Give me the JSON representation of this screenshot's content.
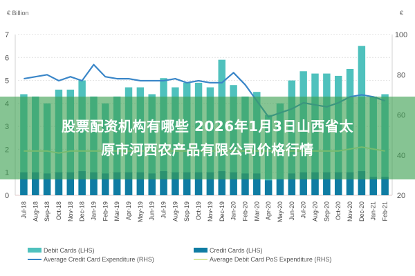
{
  "chart_data": {
    "type": "bar",
    "title": "",
    "left_unit": "€ Billion",
    "right_unit": "€",
    "ylabel_left": "€ Billion",
    "ylabel_right": "€",
    "ylim_left": [
      0,
      7
    ],
    "ylim_right": [
      20,
      100
    ],
    "yticks_left": [
      0,
      1,
      2,
      3,
      4,
      5,
      6,
      7
    ],
    "yticks_right": [
      20,
      40,
      60,
      80,
      100
    ],
    "grid": true,
    "legend_position": "bottom",
    "categories": [
      "Jul-18",
      "Aug-18",
      "Sep-18",
      "Oct-18",
      "Nov-18",
      "Dec-18",
      "Jan-19",
      "Feb-19",
      "Mar-19",
      "Apr-19",
      "May-19",
      "Jun-19",
      "Jul-19",
      "Aug-19",
      "Sep-19",
      "Oct-19",
      "Nov-19",
      "Dec-19",
      "Jan-20",
      "Feb-20",
      "Mar-20",
      "Apr-20",
      "May-20",
      "Jun-20",
      "Jul-20",
      "Aug-20",
      "Sep-20",
      "Oct-20",
      "Nov-20",
      "Dec-20",
      "Jan-21",
      "Feb-21"
    ],
    "series": [
      {
        "name": "Debit Cards (LHS)",
        "axis": "left",
        "kind": "bar",
        "color": "#4fc1bd",
        "values": [
          4.4,
          4.3,
          4.0,
          4.6,
          4.6,
          5.0,
          4.3,
          4.0,
          4.3,
          4.7,
          4.7,
          4.4,
          5.1,
          4.7,
          4.9,
          4.9,
          4.7,
          5.9,
          4.8,
          4.3,
          4.5,
          3.5,
          4.0,
          5.0,
          5.4,
          5.3,
          5.3,
          5.2,
          5.5,
          6.5,
          4.3,
          4.4
        ]
      },
      {
        "name": "Credit Cards (LHS)",
        "axis": "left",
        "kind": "bar",
        "color": "#0f7ca3",
        "values": [
          1.0,
          1.0,
          0.95,
          1.0,
          1.0,
          1.05,
          1.0,
          0.95,
          1.0,
          1.0,
          1.0,
          0.95,
          1.05,
          1.0,
          1.0,
          1.0,
          1.0,
          1.05,
          1.0,
          0.95,
          0.95,
          0.65,
          0.7,
          0.95,
          1.0,
          1.0,
          1.0,
          1.0,
          1.0,
          1.05,
          0.8,
          0.8
        ]
      },
      {
        "name": "Average Credit Card Expenditure (RHS)",
        "axis": "right",
        "kind": "line",
        "color": "#3a86c8",
        "values": [
          78,
          79,
          80,
          77,
          79,
          77,
          85,
          79,
          78,
          78,
          77,
          77,
          77,
          78,
          76,
          77,
          76,
          76,
          81,
          75,
          67,
          59,
          61,
          63,
          66,
          65,
          64,
          66,
          69,
          70,
          69,
          67
        ]
      },
      {
        "name": "Average Debit Card PoS Expenditure (RHS)",
        "axis": "right",
        "kind": "line",
        "color": "#d8e8a0",
        "values": [
          42,
          42,
          42,
          41,
          42,
          42,
          42,
          42,
          42,
          42,
          42,
          42,
          42,
          42,
          42,
          42,
          42,
          42,
          42,
          42,
          42,
          42,
          42,
          42,
          42,
          42,
          42,
          42,
          43,
          44,
          43,
          42
        ]
      }
    ]
  },
  "axes": {
    "left_unit": "€ Billion",
    "right_unit": "€"
  },
  "overlay": {
    "line1": "股票配资机构有哪些 2026年1月3日山西省太",
    "line2": "原市河西农产品有限公司价格行情"
  },
  "legend": {
    "items": [
      {
        "label": "Debit Cards (LHS)",
        "color": "#4fc1bd",
        "type": "box"
      },
      {
        "label": "Credit Cards (LHS)",
        "color": "#0f7ca3",
        "type": "box"
      },
      {
        "label": "Average Credit Card Expenditure (RHS)",
        "color": "#3a86c8",
        "type": "line"
      },
      {
        "label": "Average Debit Card PoS Expenditure (RHS)",
        "color": "#d8e8a0",
        "type": "line"
      }
    ]
  }
}
